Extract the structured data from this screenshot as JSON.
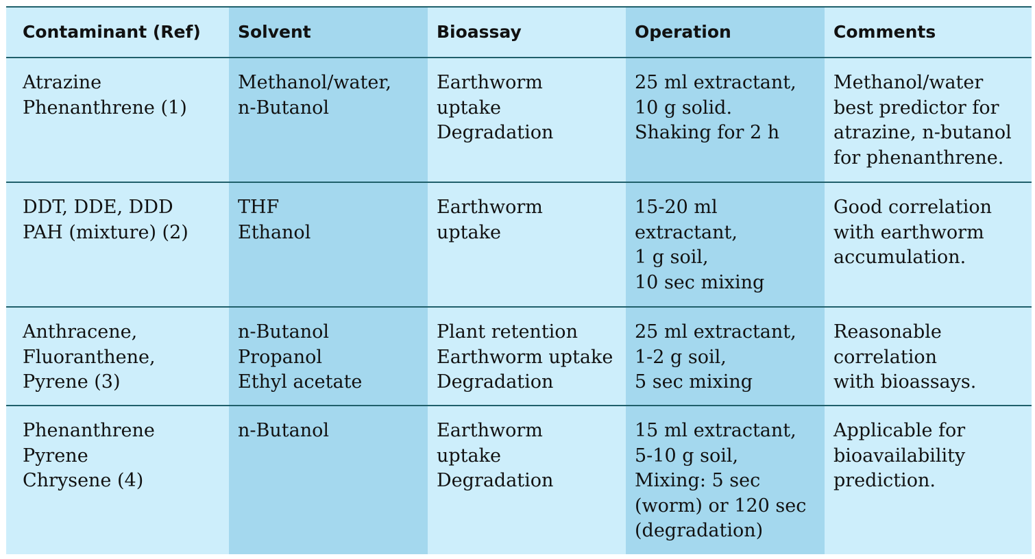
{
  "table": {
    "headers": [
      "Contaminant (Ref)",
      "Solvent",
      "Bioassay",
      "Operation",
      "Comments"
    ],
    "rows": [
      {
        "contaminant": "Atrazine\nPhenanthrene (1)",
        "solvent": "Methanol/water,\nn-Butanol",
        "bioassay": "Earthworm\nuptake\nDegradation",
        "operation": "25 ml extractant,\n10 g solid.\nShaking for 2 h",
        "comments": "Methanol/water\nbest predictor for\natrazine, n-butanol\nfor phenanthrene."
      },
      {
        "contaminant": "DDT, DDE, DDD\nPAH (mixture) (2)",
        "solvent": "THF\nEthanol",
        "bioassay": "Earthworm\nuptake",
        "operation": "15-20 ml\nextractant,\n1 g soil,\n10 sec mixing",
        "comments": "Good correlation\nwith earthworm\naccumulation."
      },
      {
        "contaminant": "Anthracene,\nFluoranthene,\nPyrene (3)",
        "solvent": "n-Butanol\nPropanol\nEthyl acetate",
        "bioassay": "Plant retention\nEarthworm uptake\nDegradation",
        "operation": "25 ml extractant,\n1-2 g soil,\n5 sec mixing",
        "comments": "Reasonable\ncorrelation\nwith bioassays."
      },
      {
        "contaminant": "Phenanthrene\nPyrene\nChrysene (4)",
        "solvent": "n-Butanol",
        "bioassay": "Earthworm\nuptake\nDegradation",
        "operation": "15 ml extractant,\n5-10 g soil,\nMixing: 5 sec\n(worm) or 120 sec\n(degradation)",
        "comments": "Applicable for\nbioavailability\nprediction."
      }
    ]
  },
  "colors": {
    "light_column": "#cdeefb",
    "dark_column": "#a4d8ee",
    "rule": "#1f5f6a"
  }
}
